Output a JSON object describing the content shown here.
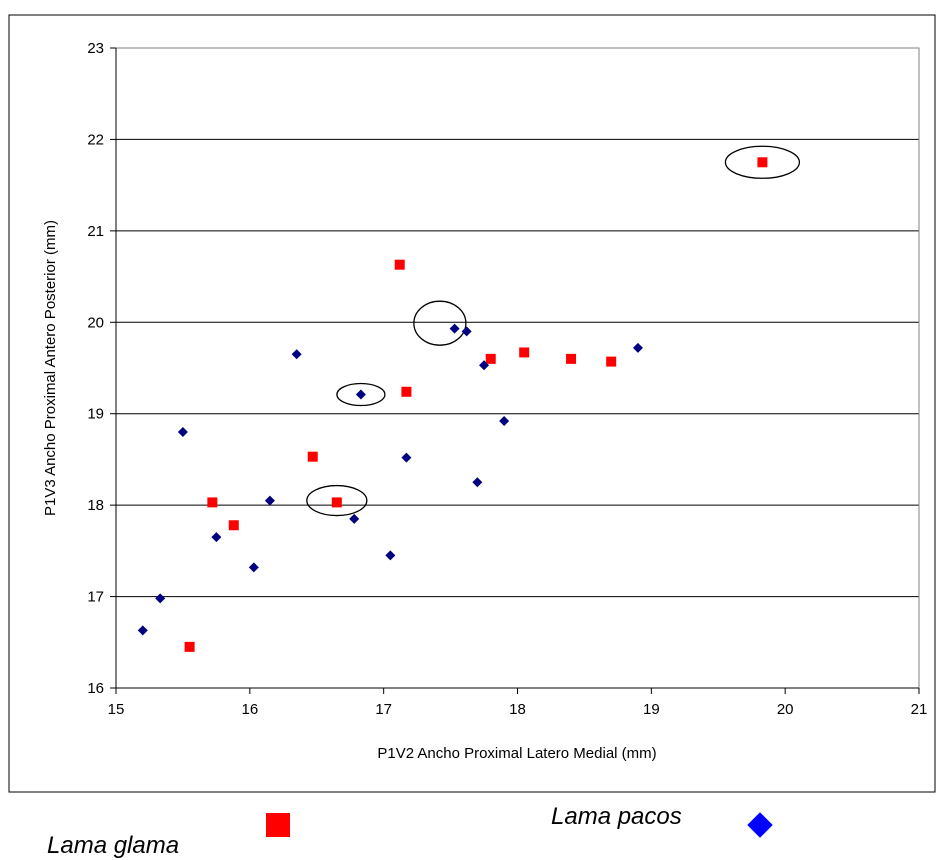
{
  "chart_data": {
    "type": "scatter",
    "title": "",
    "xlabel": "P1V2 Ancho Proximal Latero Medial (mm)",
    "ylabel": "P1V3 Ancho Proximal Antero Posterior (mm)",
    "xlim": [
      15,
      21
    ],
    "ylim": [
      16,
      23
    ],
    "xticks": [
      15,
      16,
      17,
      18,
      19,
      20,
      21
    ],
    "yticks": [
      16,
      17,
      18,
      19,
      20,
      21,
      22,
      23
    ],
    "grid": "horizontal",
    "legend_position": "bottom",
    "series": [
      {
        "name": "Lama glama",
        "marker": "square",
        "color": "#ff0000",
        "points": [
          [
            15.55,
            16.45
          ],
          [
            15.72,
            18.03
          ],
          [
            15.88,
            17.78
          ],
          [
            16.47,
            18.53
          ],
          [
            16.65,
            18.03
          ],
          [
            17.12,
            20.63
          ],
          [
            17.17,
            19.24
          ],
          [
            17.8,
            19.6
          ],
          [
            18.05,
            19.67
          ],
          [
            18.4,
            19.6
          ],
          [
            18.7,
            19.57
          ],
          [
            19.83,
            21.75
          ]
        ]
      },
      {
        "name": "Lama pacos",
        "marker": "diamond",
        "color": "#000080",
        "points": [
          [
            15.2,
            16.63
          ],
          [
            15.33,
            16.98
          ],
          [
            15.5,
            18.8
          ],
          [
            15.75,
            17.65
          ],
          [
            16.03,
            17.32
          ],
          [
            16.15,
            18.05
          ],
          [
            16.35,
            19.65
          ],
          [
            16.78,
            17.85
          ],
          [
            16.83,
            19.21
          ],
          [
            17.05,
            17.45
          ],
          [
            17.17,
            18.52
          ],
          [
            17.53,
            19.93
          ],
          [
            17.62,
            19.9
          ],
          [
            17.7,
            18.25
          ],
          [
            17.75,
            19.53
          ],
          [
            17.9,
            18.92
          ],
          [
            18.9,
            19.72
          ]
        ]
      }
    ],
    "annotations": [
      {
        "shape": "ellipse",
        "around": [
          19.83,
          21.75
        ]
      },
      {
        "shape": "ellipse",
        "around": [
          17.42,
          19.99
        ]
      },
      {
        "shape": "ellipse",
        "around": [
          16.83,
          19.21
        ]
      },
      {
        "shape": "ellipse",
        "around": [
          16.65,
          18.05
        ]
      }
    ]
  },
  "legend": {
    "items": [
      {
        "label": "Lama glama",
        "color": "#ff0000",
        "marker": "square-icon"
      },
      {
        "label": "Lama pacos",
        "color": "#0000ff",
        "marker": "diamond-icon"
      }
    ]
  }
}
